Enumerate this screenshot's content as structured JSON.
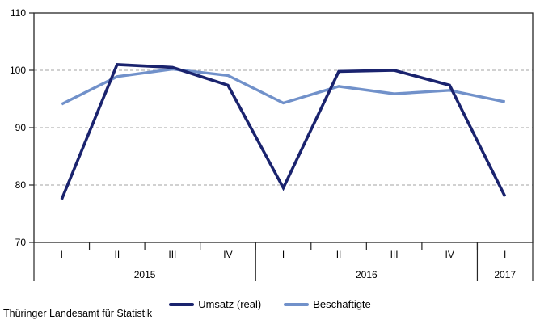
{
  "chart_data": {
    "type": "line",
    "title": "",
    "xlabel": "",
    "ylabel": "",
    "categories": [
      "I",
      "II",
      "III",
      "IV",
      "I",
      "II",
      "III",
      "IV",
      "I"
    ],
    "year_groups": [
      {
        "label": "2015",
        "span": 4
      },
      {
        "label": "2016",
        "span": 4
      },
      {
        "label": "2017",
        "span": 1
      }
    ],
    "series": [
      {
        "name": "Umsatz (real)",
        "color": "#1a236e",
        "line_width": 3.6,
        "values": [
          77.5,
          101.0,
          100.5,
          97.4,
          79.5,
          99.8,
          100.0,
          97.4,
          78.0
        ]
      },
      {
        "name": "Beschäftigte",
        "color": "#7191ca",
        "line_width": 3.4,
        "values": [
          94.1,
          98.9,
          100.2,
          99.1,
          94.3,
          97.2,
          95.9,
          96.5,
          94.5
        ]
      }
    ],
    "ylim": [
      70,
      110
    ],
    "yticks": [
      70,
      80,
      90,
      100,
      110
    ],
    "grid": "horizontal-dashed",
    "legend_position": "bottom-center"
  },
  "legend": {
    "items": [
      {
        "label": "Umsatz (real)"
      },
      {
        "label": "Beschäftigte"
      }
    ]
  },
  "source": "Thüringer Landesamt für Statistik",
  "colors": {
    "umsatz": "#1a236e",
    "beschaeftigte": "#7191ca",
    "grid": "#a3a3a3",
    "axis": "#262626",
    "text": "#000000",
    "background": "#ffffff"
  }
}
